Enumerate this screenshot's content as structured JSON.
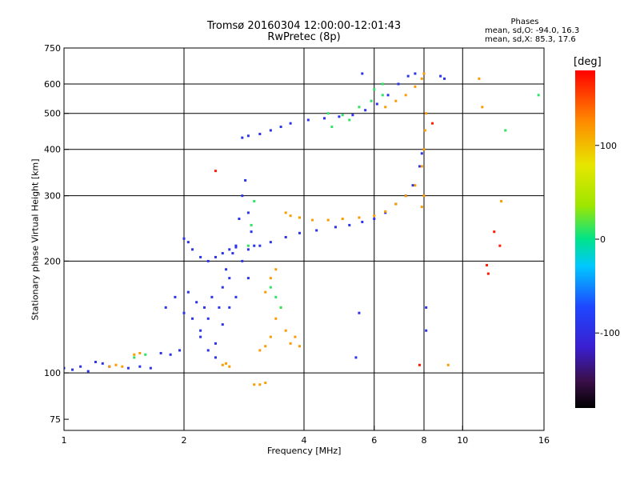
{
  "header": {
    "title_line1": "Tromsø 20160304 12:00:00-12:01:43",
    "title_line2": "RwPretec (8p)"
  },
  "phases": {
    "title": "Phases",
    "line_o": "mean, sd,O: -94.0, 16.3",
    "line_x": "mean, sd,X: 85.3, 17.6"
  },
  "colorbar": {
    "unit": "[deg]",
    "ticks": [
      {
        "value": 100,
        "label": "100"
      },
      {
        "value": 0,
        "label": "0"
      },
      {
        "value": -100,
        "label": "-100"
      }
    ],
    "range": [
      -180,
      180
    ]
  },
  "chart_data": {
    "type": "scatter",
    "xlabel": "Frequency [MHz]",
    "ylabel": "Stationary phase Virtual Height [km]",
    "x_scale": "log",
    "y_scale": "log",
    "xlim": [
      1,
      16
    ],
    "ylim": [
      70,
      750
    ],
    "x_ticks": [
      {
        "value": 1,
        "label": "1"
      },
      {
        "value": 2,
        "label": "2"
      },
      {
        "value": 4,
        "label": "4"
      },
      {
        "value": 6,
        "label": "6"
      },
      {
        "value": 8,
        "label": "8"
      },
      {
        "value": 10,
        "label": "10"
      },
      {
        "value": 16,
        "label": "16"
      }
    ],
    "y_ticks": [
      {
        "value": 75,
        "label": "75"
      },
      {
        "value": 100,
        "label": "100"
      },
      {
        "value": 200,
        "label": "200"
      },
      {
        "value": 300,
        "label": "300"
      },
      {
        "value": 400,
        "label": "400"
      },
      {
        "value": 500,
        "label": "500"
      },
      {
        "value": 600,
        "label": "600"
      },
      {
        "value": 750,
        "label": "750"
      }
    ],
    "x_grid": [
      2,
      4,
      6,
      8,
      10
    ],
    "y_grid": [
      100,
      200,
      300,
      400,
      500,
      600
    ],
    "series": [
      {
        "mode": "O",
        "phase": -100,
        "points": [
          [
            1.0,
            103
          ],
          [
            1.05,
            102
          ],
          [
            1.1,
            104
          ],
          [
            1.15,
            101
          ],
          [
            1.2,
            107
          ],
          [
            1.25,
            106
          ],
          [
            1.3,
            104
          ],
          [
            1.45,
            103
          ],
          [
            1.55,
            104
          ],
          [
            1.65,
            103
          ],
          [
            1.75,
            113
          ],
          [
            1.85,
            112
          ],
          [
            1.95,
            115
          ],
          [
            1.8,
            150
          ],
          [
            1.9,
            160
          ],
          [
            2.0,
            145
          ],
          [
            2.05,
            165
          ],
          [
            2.1,
            140
          ],
          [
            2.15,
            155
          ],
          [
            2.2,
            130
          ],
          [
            2.25,
            150
          ],
          [
            2.3,
            140
          ],
          [
            2.35,
            160
          ],
          [
            2.4,
            120
          ],
          [
            2.45,
            150
          ],
          [
            2.5,
            170
          ],
          [
            2.55,
            190
          ],
          [
            2.6,
            180
          ],
          [
            2.65,
            210
          ],
          [
            2.7,
            220
          ],
          [
            2.75,
            260
          ],
          [
            2.8,
            300
          ],
          [
            2.85,
            330
          ],
          [
            2.9,
            270
          ],
          [
            2.95,
            240
          ],
          [
            3.0,
            220
          ],
          [
            2.5,
            135
          ],
          [
            2.6,
            150
          ],
          [
            2.7,
            160
          ],
          [
            2.8,
            200
          ],
          [
            2.9,
            180
          ],
          [
            2.4,
            110
          ],
          [
            2.3,
            115
          ],
          [
            2.2,
            125
          ],
          [
            2.0,
            230
          ],
          [
            2.05,
            225
          ],
          [
            2.1,
            215
          ],
          [
            2.2,
            205
          ],
          [
            2.3,
            200
          ],
          [
            2.4,
            205
          ],
          [
            2.5,
            210
          ],
          [
            2.6,
            215
          ],
          [
            2.7,
            218
          ],
          [
            2.9,
            215
          ],
          [
            3.1,
            220
          ],
          [
            3.3,
            225
          ],
          [
            3.6,
            232
          ],
          [
            3.9,
            238
          ],
          [
            4.3,
            242
          ],
          [
            4.8,
            247
          ],
          [
            5.2,
            250
          ],
          [
            5.6,
            255
          ],
          [
            6.0,
            260
          ],
          [
            6.4,
            270
          ],
          [
            6.8,
            285
          ],
          [
            7.2,
            300
          ],
          [
            7.5,
            320
          ],
          [
            7.8,
            360
          ],
          [
            7.9,
            390
          ],
          [
            2.8,
            430
          ],
          [
            2.9,
            435
          ],
          [
            3.1,
            440
          ],
          [
            3.3,
            450
          ],
          [
            3.5,
            460
          ],
          [
            3.7,
            470
          ],
          [
            4.1,
            480
          ],
          [
            4.5,
            485
          ],
          [
            4.9,
            490
          ],
          [
            5.3,
            495
          ],
          [
            5.7,
            510
          ],
          [
            6.1,
            530
          ],
          [
            6.5,
            560
          ],
          [
            6.9,
            600
          ],
          [
            7.3,
            630
          ],
          [
            7.6,
            640
          ],
          [
            8.8,
            630
          ],
          [
            5.6,
            640
          ],
          [
            8.1,
            150
          ],
          [
            5.5,
            145
          ],
          [
            5.4,
            110
          ],
          [
            8.1,
            130
          ],
          [
            9.0,
            620
          ]
        ]
      },
      {
        "mode": "X",
        "phase": 120,
        "points": [
          [
            1.3,
            104
          ],
          [
            1.35,
            105
          ],
          [
            1.4,
            104
          ],
          [
            1.5,
            112
          ],
          [
            1.55,
            113
          ],
          [
            3.0,
            93
          ],
          [
            3.1,
            93
          ],
          [
            3.2,
            94
          ],
          [
            2.5,
            105
          ],
          [
            2.55,
            106
          ],
          [
            2.6,
            104
          ],
          [
            3.1,
            115
          ],
          [
            3.2,
            118
          ],
          [
            3.3,
            125
          ],
          [
            3.4,
            140
          ],
          [
            3.5,
            150
          ],
          [
            3.6,
            130
          ],
          [
            3.7,
            120
          ],
          [
            3.8,
            125
          ],
          [
            3.9,
            118
          ],
          [
            3.6,
            270
          ],
          [
            3.7,
            265
          ],
          [
            3.9,
            262
          ],
          [
            4.2,
            258
          ],
          [
            4.6,
            258
          ],
          [
            5.0,
            260
          ],
          [
            5.5,
            262
          ],
          [
            6.0,
            265
          ],
          [
            6.4,
            272
          ],
          [
            6.8,
            285
          ],
          [
            7.2,
            300
          ],
          [
            7.6,
            320
          ],
          [
            7.9,
            360
          ],
          [
            8.0,
            400
          ],
          [
            8.05,
            450
          ],
          [
            8.1,
            500
          ],
          [
            8.0,
            300
          ],
          [
            7.9,
            280
          ],
          [
            6.4,
            520
          ],
          [
            6.8,
            540
          ],
          [
            7.2,
            560
          ],
          [
            7.6,
            590
          ],
          [
            7.9,
            620
          ],
          [
            8.0,
            640
          ],
          [
            11.0,
            620
          ],
          [
            11.2,
            520
          ],
          [
            12.5,
            290
          ],
          [
            9.2,
            105
          ],
          [
            3.4,
            190
          ],
          [
            3.3,
            180
          ],
          [
            3.2,
            165
          ]
        ]
      },
      {
        "mode": "mixed",
        "phase": 10,
        "points": [
          [
            1.5,
            110
          ],
          [
            1.6,
            112
          ],
          [
            3.3,
            170
          ],
          [
            3.4,
            160
          ],
          [
            3.5,
            150
          ],
          [
            4.6,
            500
          ],
          [
            5.0,
            495
          ],
          [
            5.5,
            520
          ],
          [
            5.9,
            540
          ],
          [
            6.3,
            560
          ],
          [
            4.7,
            460
          ],
          [
            5.2,
            480
          ],
          [
            2.9,
            220
          ],
          [
            2.95,
            250
          ],
          [
            3.0,
            290
          ],
          [
            6.0,
            580
          ],
          [
            6.3,
            600
          ],
          [
            12.8,
            450
          ],
          [
            15.5,
            560
          ]
        ]
      },
      {
        "mode": "high",
        "phase": 170,
        "points": [
          [
            7.8,
            105
          ],
          [
            11.5,
            195
          ],
          [
            11.6,
            185
          ],
          [
            12.0,
            240
          ],
          [
            12.4,
            220
          ],
          [
            2.4,
            350
          ],
          [
            8.4,
            470
          ]
        ]
      }
    ]
  }
}
